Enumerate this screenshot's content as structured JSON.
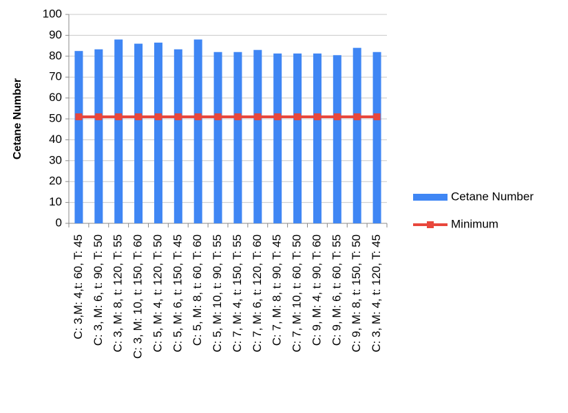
{
  "chart_data": {
    "type": "bar",
    "y_label": "Cetane Number",
    "categories": [
      "C: 3,M: 4,t: 60, T: 45",
      "C: 3, M: 6, t: 90, T: 50",
      "C: 3, M: 8, t: 120, T: 55",
      "C: 3, M: 10, t: 150, T: 60",
      "C: 5, M: 4, t: 120, T: 50",
      "C: 5, M: 6, t: 150, T: 45",
      "C: 5, M: 8, t: 60, T: 60",
      "C: 5, M: 10, t: 90, T: 55",
      "C: 7, M: 4, t: 150, T: 55",
      "C: 7, M: 6, t: 120, T: 60",
      "C: 7, M: 8, t: 90, T: 45",
      "C: 7, M: 10, t: 60, T: 50",
      "C: 9, M: 4, t: 90, T: 60",
      "C: 9, M: 6, t: 60, T: 55",
      "C: 9, M: 8, t: 150, T: 50",
      "C: 3, M: 4, t: 120, T: 45"
    ],
    "series": [
      {
        "name": "Cetane Number",
        "kind": "bar",
        "color": "#3f86f4",
        "values": [
          82.5,
          83.3,
          88,
          86,
          86.5,
          83.3,
          88,
          82,
          82,
          83,
          81.3,
          81.3,
          81.3,
          80.5,
          84,
          82
        ]
      },
      {
        "name": "Minimum",
        "kind": "line",
        "color": "#e8473c",
        "values": [
          51,
          51,
          51,
          51,
          51,
          51,
          51,
          51,
          51,
          51,
          51,
          51,
          51,
          51,
          51,
          51
        ]
      }
    ],
    "ylim": [
      0,
      100
    ],
    "yticks": [
      0,
      10,
      20,
      30,
      40,
      50,
      60,
      70,
      80,
      90,
      100
    ],
    "grid": true,
    "legend": "right"
  }
}
